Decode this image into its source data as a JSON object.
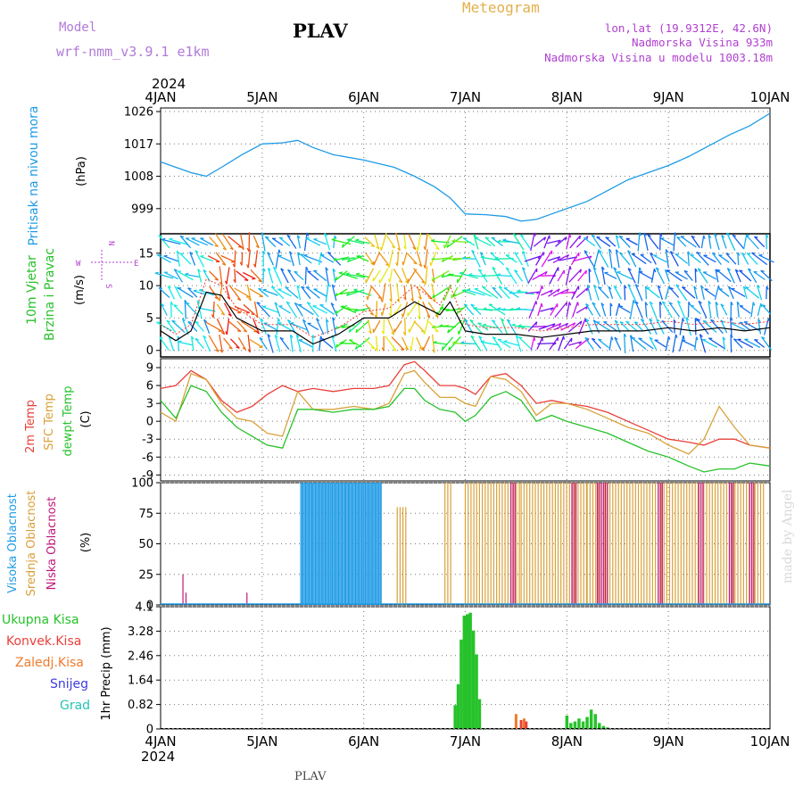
{
  "header": {
    "model_label": "Model",
    "model_name": "wrf-nmm_v3.9.1  e1km",
    "station": "PLAV",
    "meteogram_label": "Meteogram",
    "lonlat": "lon,lat (19.9312E, 42.6N)",
    "altitude": "Nadmorska Visina 933m",
    "model_altitude": "Nadmorska Visina u modelu 1003.18m",
    "footer_station": "PLAV",
    "watermark": "made by Angel"
  },
  "colors": {
    "pressure": "#1e9be6",
    "temp": "#e8403a",
    "sfc": "#d9a13a",
    "dew": "#27c22b",
    "high_cloud": "#1e9be6",
    "mid_cloud": "#d9a13a",
    "low_cloud": "#c2167a",
    "total_precip": "#27c22b",
    "conv_precip": "#e8403a",
    "frozen_precip": "#f07a2a",
    "snow": "#3c3ce0",
    "hail": "#26c4b4",
    "title": "#b07ad8"
  },
  "chart_data": [
    {
      "type": "line",
      "name": "pressure",
      "xlabel_top_year": "2024",
      "xlabel_bottom_year": "2024",
      "x_ticks": [
        "4JAN",
        "5JAN",
        "6JAN",
        "7JAN",
        "8JAN",
        "9JAN",
        "10JAN"
      ],
      "xlim_days": [
        4,
        10
      ],
      "ylabel": "Pritisak na nivou mora",
      "yunit": "(hPa)",
      "ylim": [
        992,
        1027
      ],
      "y_ticks": [
        999,
        1008,
        1017,
        1026
      ],
      "x": [
        4.0,
        4.1,
        4.2,
        4.3,
        4.45,
        4.6,
        4.8,
        5.0,
        5.2,
        5.35,
        5.5,
        5.7,
        6.0,
        6.3,
        6.5,
        6.7,
        6.85,
        7.0,
        7.2,
        7.4,
        7.55,
        7.7,
        7.85,
        8.0,
        8.2,
        8.4,
        8.6,
        8.8,
        9.0,
        9.2,
        9.4,
        9.6,
        9.8,
        10.0
      ],
      "y": [
        1012,
        1011,
        1010,
        1009,
        1008,
        1010.5,
        1014,
        1017,
        1017.3,
        1018,
        1016,
        1014,
        1012.5,
        1010.5,
        1008,
        1005,
        1002,
        997.5,
        997.3,
        996.8,
        995.5,
        996,
        997.5,
        999,
        1001,
        1004,
        1007,
        1009,
        1011,
        1013.5,
        1016.5,
        1019.5,
        1022,
        1025.5
      ]
    },
    {
      "type": "line",
      "name": "wind",
      "ylabel": "10m Vjetar",
      "ylabel2": "Brzina i Pravac",
      "yunit": "(m/s)",
      "compass": {
        "n": "N",
        "s": "S",
        "e": "E",
        "w": "W"
      },
      "ylim": [
        -1,
        18
      ],
      "y_ticks": [
        0,
        5,
        10,
        15
      ],
      "x": [
        4.0,
        4.15,
        4.3,
        4.45,
        4.6,
        4.75,
        5.0,
        5.3,
        5.5,
        5.75,
        6.0,
        6.25,
        6.5,
        6.75,
        6.85,
        7.0,
        7.2,
        7.5,
        7.75,
        8.0,
        8.25,
        8.5,
        8.75,
        9.0,
        9.25,
        9.5,
        9.75,
        10.0
      ],
      "y": [
        3,
        1.5,
        3,
        9,
        8.5,
        5,
        3,
        3,
        1,
        2.5,
        5,
        5,
        7.5,
        5.5,
        7.5,
        3,
        2.5,
        2.5,
        2,
        2.5,
        3,
        3,
        3,
        3.5,
        3,
        3.5,
        3,
        3.5
      ],
      "gust_y": [
        4,
        2.5,
        4,
        11,
        10,
        6.5,
        4,
        4,
        2,
        3.5,
        6,
        6.5,
        10,
        7,
        10,
        4,
        3.5,
        3.5,
        3,
        3.5,
        4,
        4,
        4,
        4.5,
        4,
        4.5,
        4,
        4.5
      ]
    },
    {
      "type": "line",
      "name": "temperature",
      "ylabel": "2m Temp",
      "ylabel2": "SFC Temp",
      "ylabel3": "dewpt Temp",
      "yunit": "(C)",
      "ylim": [
        -10,
        10.5
      ],
      "y_ticks": [
        -9,
        -6,
        -3,
        0,
        3,
        6,
        9
      ],
      "x": [
        4.0,
        4.15,
        4.3,
        4.45,
        4.6,
        4.75,
        4.9,
        5.05,
        5.2,
        5.35,
        5.5,
        5.7,
        5.9,
        6.1,
        6.25,
        6.4,
        6.5,
        6.6,
        6.75,
        6.9,
        7.0,
        7.1,
        7.25,
        7.4,
        7.55,
        7.7,
        7.85,
        8.0,
        8.2,
        8.4,
        8.6,
        8.8,
        9.0,
        9.2,
        9.35,
        9.5,
        9.65,
        9.8,
        10.0
      ],
      "series": [
        {
          "name": "2m Temp",
          "values": [
            5.5,
            6,
            8.5,
            7,
            3.5,
            1.5,
            2.5,
            4.5,
            6,
            5,
            5.5,
            5,
            5.5,
            5.5,
            6,
            9.5,
            10,
            8.5,
            6,
            6,
            5.5,
            4.5,
            7.5,
            8,
            6,
            3,
            3.5,
            3,
            2.5,
            1.5,
            0,
            -1.5,
            -3,
            -3.5,
            -4,
            -3,
            -3,
            -4,
            -4.5
          ]
        },
        {
          "name": "SFC Temp",
          "values": [
            1.5,
            0,
            8,
            7,
            3,
            0.5,
            0,
            -2,
            -2.5,
            5,
            2,
            2,
            2.5,
            2,
            3,
            8,
            8.5,
            6.5,
            4,
            4,
            3,
            2.5,
            7.5,
            7,
            5,
            1,
            3,
            3,
            2,
            0.5,
            -1,
            -2,
            -4,
            -5.5,
            -3,
            2.5,
            -1,
            -4,
            -4.5
          ]
        },
        {
          "name": "dewpt Temp",
          "values": [
            3.5,
            0.5,
            6,
            5,
            1.5,
            -1,
            -2.5,
            -4,
            -4.5,
            2,
            2,
            1.5,
            2,
            2,
            2.5,
            5.5,
            5.5,
            3.5,
            2,
            1.5,
            0,
            1,
            4,
            5,
            3.5,
            0,
            1,
            0,
            -1,
            -2,
            -3.5,
            -5,
            -6,
            -7.5,
            -8.5,
            -8,
            -8,
            -7,
            -7.5
          ]
        }
      ]
    },
    {
      "type": "bar",
      "name": "cloud",
      "ylabel": "Visoka Oblacnost",
      "ylabel2": "Srednja Oblacnost",
      "ylabel3": "Niska Oblacnost",
      "yunit": "(%)",
      "ylim": [
        0,
        100
      ],
      "y_ticks": [
        0,
        25,
        50,
        75,
        100
      ],
      "high_runs": [
        [
          5.38,
          6.18,
          100
        ]
      ],
      "mid_runs": [
        [
          6.33,
          6.42,
          80
        ],
        [
          6.8,
          6.86,
          100
        ],
        [
          7.0,
          7.55,
          100
        ],
        [
          7.55,
          8.2,
          100
        ],
        [
          8.2,
          9.95,
          100
        ]
      ],
      "low_runs": [
        [
          7.45,
          7.5,
          100
        ],
        [
          8.05,
          8.1,
          100
        ],
        [
          8.3,
          8.4,
          100
        ],
        [
          8.9,
          8.95,
          100
        ],
        [
          9.3,
          9.35,
          100
        ],
        [
          9.6,
          9.65,
          100
        ],
        [
          9.8,
          9.85,
          100
        ]
      ],
      "isolated_low": [
        [
          4.22,
          25
        ],
        [
          4.25,
          10
        ],
        [
          4.85,
          10
        ]
      ]
    },
    {
      "type": "bar",
      "name": "precip",
      "ylabel": "1hr Precip",
      "yunit": "(mm)",
      "legend": [
        "Ukupna Kisa",
        "Konvek.Kisa",
        "Zaledj.Kisa",
        "Snijeg",
        "Grad"
      ],
      "ylim": [
        0,
        4.1
      ],
      "y_ticks": [
        "0",
        "0.82",
        "1.64",
        "2.46",
        "3.28",
        "4.1"
      ],
      "y_tick_values": [
        0,
        0.82,
        1.64,
        2.46,
        3.28,
        4.1
      ],
      "total_bars": [
        [
          6.9,
          0.8
        ],
        [
          6.93,
          1.5
        ],
        [
          6.96,
          3.0
        ],
        [
          6.99,
          3.8
        ],
        [
          7.02,
          3.85
        ],
        [
          7.05,
          3.9
        ],
        [
          7.08,
          3.3
        ],
        [
          7.11,
          2.5
        ],
        [
          7.14,
          1.0
        ],
        [
          8.0,
          0.45
        ],
        [
          8.04,
          0.2
        ],
        [
          8.08,
          0.25
        ],
        [
          8.12,
          0.35
        ],
        [
          8.16,
          0.25
        ],
        [
          8.2,
          0.4
        ],
        [
          8.24,
          0.65
        ],
        [
          8.28,
          0.5
        ],
        [
          8.32,
          0.2
        ],
        [
          8.36,
          0.1
        ],
        [
          8.4,
          0.05
        ]
      ],
      "conv_bars": [
        [
          7.55,
          0.3
        ],
        [
          7.6,
          0.25
        ]
      ],
      "frozen_bars": [
        [
          7.5,
          0.5
        ],
        [
          7.58,
          0.35
        ]
      ]
    }
  ]
}
